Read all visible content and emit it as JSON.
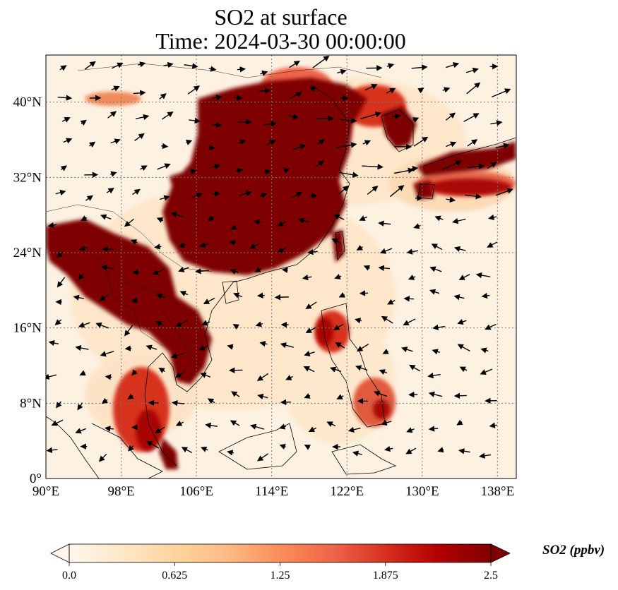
{
  "title": {
    "line1": "SO2 at surface",
    "line2": "Time: 2024-03-30 00:00:00"
  },
  "map": {
    "projection": "PlateCarree",
    "lon_range": [
      90,
      140
    ],
    "lat_range": [
      0,
      45
    ],
    "gridlines": "dotted",
    "coastlines": true,
    "borders": true,
    "wind_vectors": true,
    "colormap": "OrRd"
  },
  "axes": {
    "lon_ticks": [
      {
        "value": 90,
        "label": "90°E"
      },
      {
        "value": 98,
        "label": "98°E"
      },
      {
        "value": 106,
        "label": "106°E"
      },
      {
        "value": 114,
        "label": "114°E"
      },
      {
        "value": 122,
        "label": "122°E"
      },
      {
        "value": 130,
        "label": "130°E"
      },
      {
        "value": 138,
        "label": "138°E"
      }
    ],
    "lat_ticks": [
      {
        "value": 0,
        "label": "0°"
      },
      {
        "value": 8,
        "label": "8°N"
      },
      {
        "value": 16,
        "label": "16°N"
      },
      {
        "value": 24,
        "label": "24°N"
      },
      {
        "value": 32,
        "label": "32°N"
      },
      {
        "value": 40,
        "label": "40°N"
      }
    ]
  },
  "colorbar": {
    "title": "SO2 (ppbv)",
    "min": 0.0,
    "max": 2.5,
    "extend": "both",
    "tick_labels": [
      "0.0",
      "0.625",
      "1.25",
      "1.875",
      "2.5"
    ],
    "colors": [
      "#fff7ec",
      "#fee8c8",
      "#fdd49e",
      "#fdbb84",
      "#fc8d59",
      "#ef6548",
      "#d7301f",
      "#b30000",
      "#7f0000"
    ]
  }
}
